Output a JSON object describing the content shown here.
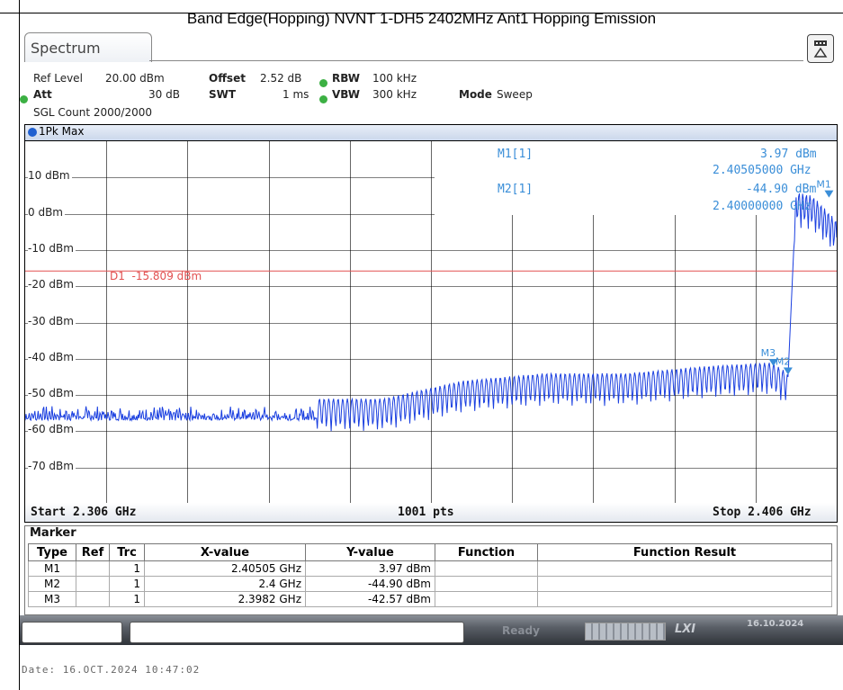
{
  "caption": "Band Edge(Hopping) NVNT 1-DH5 2402MHz Ant1 Hopping Emission",
  "tab": {
    "label": "Spectrum"
  },
  "settings": {
    "ref_level_label": "Ref Level",
    "ref_level_value": "20.00 dBm",
    "offset_label": "Offset",
    "offset_value": "2.52 dB",
    "rbw_label": "RBW",
    "rbw_value": "100 kHz",
    "att_label": "Att",
    "att_value": "30 dB",
    "swt_label": "SWT",
    "swt_value": "1 ms",
    "vbw_label": "VBW",
    "vbw_value": "300 kHz",
    "mode_label": "Mode",
    "mode_value": "Sweep",
    "sgl_count": "SGL Count 2000/2000"
  },
  "trace_label": "1Pk Max",
  "markers_readout": {
    "m1_name": "M1[1]",
    "m1_level": "3.97 dBm",
    "m1_freq": "2.40505000 GHz",
    "m2_name": "M2[1]",
    "m2_level": "-44.90 dBm",
    "m2_freq": "2.40000000 GHz"
  },
  "display_line_label": "D1  -15.809 dBm",
  "y_ticks": [
    "10 dBm",
    "0 dBm",
    "-10 dBm",
    "-20 dBm",
    "-30 dBm",
    "-40 dBm",
    "-50 dBm",
    "-60 dBm",
    "-70 dBm"
  ],
  "footer": {
    "start": "Start 2.306 GHz",
    "points": "1001 pts",
    "stop": "Stop 2.406 GHz"
  },
  "marker_table": {
    "title": "Marker",
    "headers": [
      "Type",
      "Ref",
      "Trc",
      "X-value",
      "Y-value",
      "Function",
      "Function Result"
    ],
    "rows": [
      [
        "M1",
        "",
        "1",
        "2.40505 GHz",
        "3.97 dBm",
        "",
        ""
      ],
      [
        "M2",
        "",
        "1",
        "2.4 GHz",
        "-44.90 dBm",
        "",
        ""
      ],
      [
        "M3",
        "",
        "1",
        "2.3982 GHz",
        "-42.57 dBm",
        "",
        ""
      ]
    ]
  },
  "status": {
    "ready": "Ready",
    "date": "16.10.2024"
  },
  "datestamp": "Date: 16.OCT.2024  10:47:02",
  "colors": {
    "trace": "#1a3fe0",
    "marker": "#3a8ed8",
    "display_line": "#e25050"
  },
  "chart_data": {
    "type": "line",
    "x_unit": "GHz",
    "y_unit": "dBm",
    "xlim": [
      2.306,
      2.406
    ],
    "ylim": [
      -80,
      20
    ],
    "display_line": -15.809,
    "markers": [
      {
        "name": "M1",
        "x": 2.40505,
        "y": 3.97
      },
      {
        "name": "M2",
        "x": 2.4,
        "y": -44.9
      },
      {
        "name": "M3",
        "x": 2.3982,
        "y": -42.57
      }
    ],
    "series": [
      {
        "x": [
          2.306,
          2.33,
          2.35,
          2.36,
          2.37,
          2.38,
          2.39,
          2.398,
          2.4,
          2.401,
          2.403,
          2.406
        ],
        "y": [
          -52,
          -52,
          -52,
          -47,
          -45,
          -45,
          -43,
          -42,
          -45,
          5,
          4,
          -3
        ]
      }
    ]
  }
}
